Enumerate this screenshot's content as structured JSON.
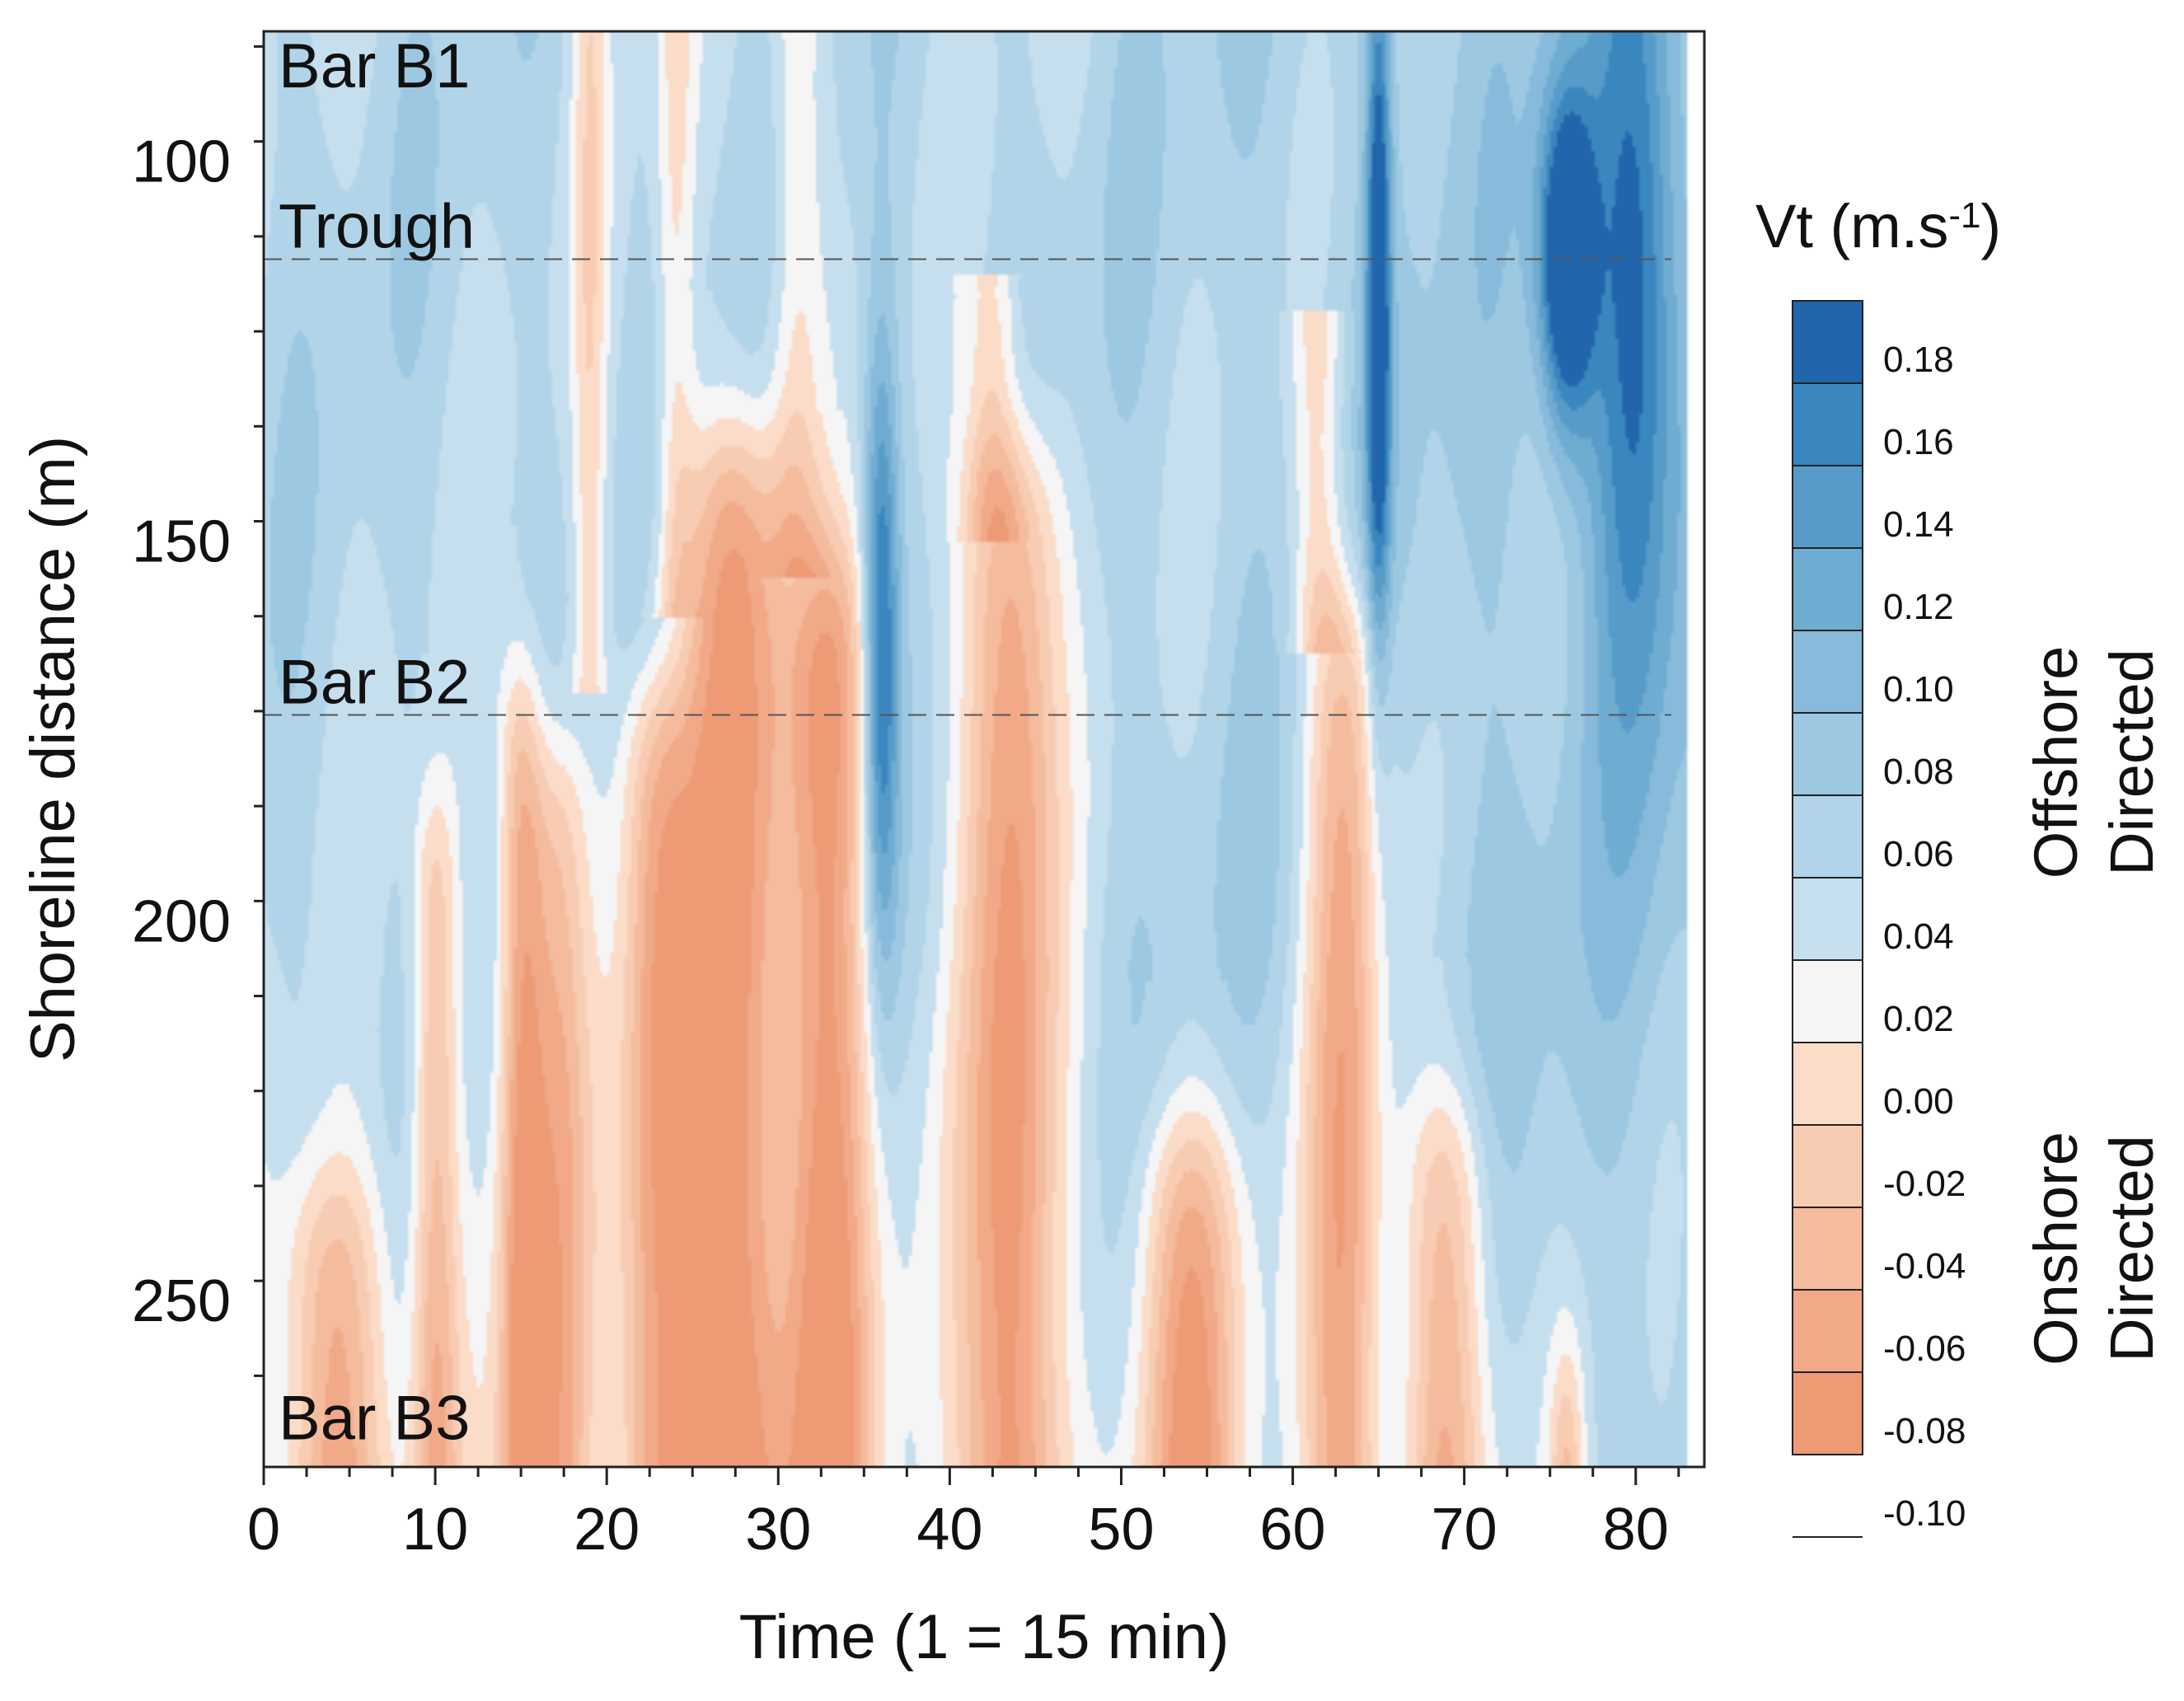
{
  "chart_data": {
    "type": "heatmap",
    "subtype": "filled-contour",
    "xlabel": "Time (1 = 15 min)",
    "ylabel": "Shoreline distance (m)",
    "xlim": [
      0,
      84
    ],
    "ylim": [
      83,
      272
    ],
    "y_inverted": true,
    "x_ticks": [
      0,
      10,
      20,
      30,
      40,
      50,
      60,
      70,
      80
    ],
    "y_ticks": [
      100,
      150,
      200,
      250
    ],
    "grid": false,
    "annotations": [
      {
        "text": "Bar B1",
        "y": 88,
        "line": false
      },
      {
        "text": "Trough",
        "y": 113,
        "line": true
      },
      {
        "text": "Bar B2",
        "y": 173,
        "line": true
      },
      {
        "text": "Bar B3",
        "y": 266,
        "line": false
      }
    ],
    "colorbar": {
      "title": "Vt (m.s",
      "title_sup": "-1",
      "title_close": ")",
      "levels": [
        0.18,
        0.16,
        0.14,
        0.12,
        0.1,
        0.08,
        0.06,
        0.04,
        0.02,
        0.0,
        -0.02,
        -0.04,
        -0.06,
        -0.08,
        -0.1
      ],
      "level_labels": [
        "0.18",
        "0.16",
        "0.14",
        "0.12",
        "0.10",
        "0.08",
        "0.06",
        "0.04",
        "0.02",
        "0.00",
        "-0.02",
        "-0.04",
        "-0.06",
        "-0.08",
        "-0.10"
      ],
      "colors": [
        "#2166ac",
        "#3a87bf",
        "#579cc9",
        "#6facd1",
        "#87badb",
        "#9cc8e2",
        "#b1d4e8",
        "#c6dfee",
        "#f5f5f5",
        "#fbdcc8",
        "#f8ccb2",
        "#f5bb9d",
        "#f1a987",
        "#ed9a75"
      ],
      "top_label": [
        "Offshore",
        "Directed"
      ],
      "bottom_label": [
        "Onshore",
        "Directed"
      ]
    },
    "value_scale": "Vt in m/s; positive = offshore (blue), negative = onshore (red)",
    "onshore_plumes": [
      {
        "t": 4,
        "top": 235,
        "halfwidth": 3.0,
        "strength": 0.04
      },
      {
        "t": 10,
        "top": 185,
        "halfwidth": 1.4,
        "strength": 0.03
      },
      {
        "t": 15,
        "top": 168,
        "halfwidth": 1.3,
        "strength": 0.04
      },
      {
        "t": 17,
        "top": 178,
        "halfwidth": 2.0,
        "strength": 0.04
      },
      {
        "t": 23,
        "top": 170,
        "halfwidth": 2.2,
        "strength": 0.05
      },
      {
        "t": 27.5,
        "top": 137,
        "halfwidth": 3.2,
        "strength": 0.07
      },
      {
        "t": 33,
        "top": 153,
        "halfwidth": 2.6,
        "strength": 0.06
      },
      {
        "t": 43.5,
        "top": 138,
        "halfwidth": 2.8,
        "strength": 0.07
      },
      {
        "t": 54,
        "top": 228,
        "halfwidth": 3.0,
        "strength": 0.05
      },
      {
        "t": 63,
        "top": 158,
        "halfwidth": 2.2,
        "strength": 0.06
      },
      {
        "t": 69,
        "top": 225,
        "halfwidth": 2.5,
        "strength": 0.04
      },
      {
        "t": 76,
        "top": 260,
        "halfwidth": 1.0,
        "strength": 0.02
      }
    ],
    "offshore_jets": [
      {
        "t": 36,
        "y": 165,
        "dt": 1.0,
        "dy": 40,
        "strength": 0.13
      },
      {
        "t": 65,
        "y": 118,
        "dt": 0.7,
        "dy": 45,
        "strength": 0.15
      },
      {
        "t": 76,
        "y": 113,
        "dt": 1.6,
        "dy": 22,
        "strength": 0.18
      },
      {
        "t": 80,
        "y": 118,
        "dt": 2.6,
        "dy": 55,
        "strength": 0.11
      }
    ],
    "calm_zones": [
      {
        "t": 19,
        "top": 85,
        "bottom": 160,
        "halfwidth": 1.0
      },
      {
        "t": 24,
        "top": 85,
        "bottom": 150,
        "halfwidth": 1.2
      },
      {
        "t": 31,
        "top": 85,
        "bottom": 145,
        "halfwidth": 1.6
      },
      {
        "t": 42.5,
        "top": 125,
        "bottom": 140,
        "halfwidth": 1.5
      },
      {
        "t": 61.5,
        "top": 130,
        "bottom": 155,
        "halfwidth": 1.5
      }
    ]
  }
}
